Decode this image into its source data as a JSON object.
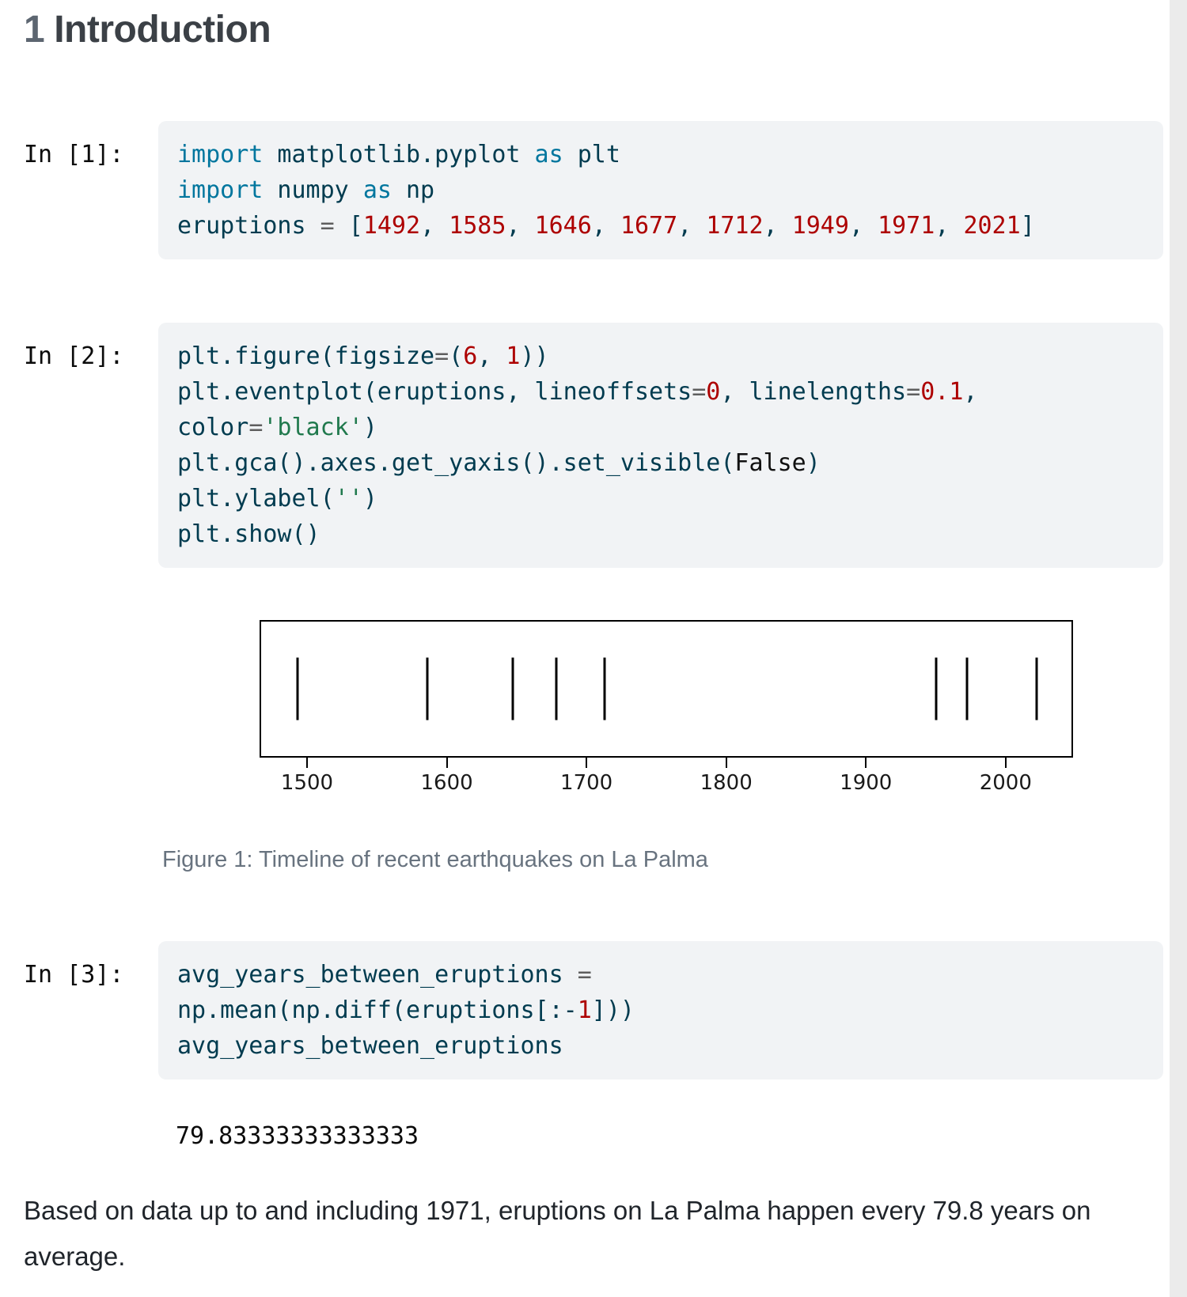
{
  "heading": {
    "number": "1",
    "title": "Introduction"
  },
  "colors": {
    "code_text": "#003B4F",
    "keyword_import": "#00769E",
    "number": "#AD0000",
    "string": "#20794D",
    "operator": "#5E5E5E",
    "constant": "#111111",
    "cell_background": "#f1f3f5",
    "caption": "#68737f",
    "scrollbar_track": "#ebebeb"
  },
  "cells": [
    {
      "prompt": "In [1]:",
      "lines": [
        [
          [
            "import",
            "im"
          ],
          [
            " matplotlib.pyplot ",
            "tx"
          ],
          [
            "as",
            "im"
          ],
          [
            " plt",
            "tx"
          ]
        ],
        [
          [
            "import",
            "im"
          ],
          [
            " numpy ",
            "tx"
          ],
          [
            "as",
            "im"
          ],
          [
            " np",
            "tx"
          ]
        ],
        [
          [
            "eruptions ",
            "tx"
          ],
          [
            "=",
            "op"
          ],
          [
            " [",
            "tx"
          ],
          [
            "1492",
            "num"
          ],
          [
            ", ",
            "tx"
          ],
          [
            "1585",
            "num"
          ],
          [
            ", ",
            "tx"
          ],
          [
            "1646",
            "num"
          ],
          [
            ", ",
            "tx"
          ],
          [
            "1677",
            "num"
          ],
          [
            ", ",
            "tx"
          ],
          [
            "1712",
            "num"
          ],
          [
            ", ",
            "tx"
          ],
          [
            "1949",
            "num"
          ],
          [
            ", ",
            "tx"
          ],
          [
            "1971",
            "num"
          ],
          [
            ", ",
            "tx"
          ],
          [
            "2021",
            "num"
          ],
          [
            "]",
            "tx"
          ]
        ]
      ]
    },
    {
      "prompt": "In [2]:",
      "lines": [
        [
          [
            "plt.figure(figsize",
            "tx"
          ],
          [
            "=",
            "op"
          ],
          [
            "(",
            "tx"
          ],
          [
            "6",
            "num"
          ],
          [
            ", ",
            "tx"
          ],
          [
            "1",
            "num"
          ],
          [
            "))",
            "tx"
          ]
        ],
        [
          [
            "plt.eventplot(eruptions, lineoffsets",
            "tx"
          ],
          [
            "=",
            "op"
          ],
          [
            "0",
            "num"
          ],
          [
            ", linelengths",
            "tx"
          ],
          [
            "=",
            "op"
          ],
          [
            "0.1",
            "num"
          ],
          [
            ",",
            "tx"
          ]
        ],
        [
          [
            "color",
            "tx"
          ],
          [
            "=",
            "op"
          ],
          [
            "'black'",
            "str"
          ],
          [
            ")",
            "tx"
          ]
        ],
        [
          [
            "plt.gca().axes.get_yaxis().set_visible(",
            "tx"
          ],
          [
            "False",
            "kc"
          ],
          [
            ")",
            "tx"
          ]
        ],
        [
          [
            "plt.ylabel(",
            "tx"
          ],
          [
            "''",
            "str"
          ],
          [
            ")",
            "tx"
          ]
        ],
        [
          [
            "plt.show()",
            "tx"
          ]
        ]
      ]
    },
    {
      "prompt": "In [3]:",
      "lines": [
        [
          [
            "avg_years_between_eruptions ",
            "tx"
          ],
          [
            "=",
            "op"
          ]
        ],
        [
          [
            "np.mean(np.diff(eruptions[:-",
            "tx"
          ],
          [
            "1",
            "num"
          ],
          [
            "]))",
            "tx"
          ]
        ],
        [
          [
            "avg_years_between_eruptions",
            "tx"
          ]
        ]
      ],
      "output": "79.83333333333333"
    }
  ],
  "figure": {
    "caption": "Figure 1: Timeline of recent earthquakes on La Palma"
  },
  "chart_data": {
    "type": "eventplot",
    "title": "",
    "xlabel": "",
    "ylabel": "",
    "x": [
      1492,
      1585,
      1646,
      1677,
      1712,
      1949,
      1971,
      2021
    ],
    "xticks": [
      1500,
      1600,
      1700,
      1800,
      1900,
      2000
    ],
    "xlim": [
      1466,
      2046
    ],
    "marker": "vertical-line",
    "line_color": "#000000",
    "yaxis_visible": false,
    "grid": false
  },
  "paragraph": "Based on data up to and including 1971, eruptions on La Palma happen every 79.8 years on average."
}
